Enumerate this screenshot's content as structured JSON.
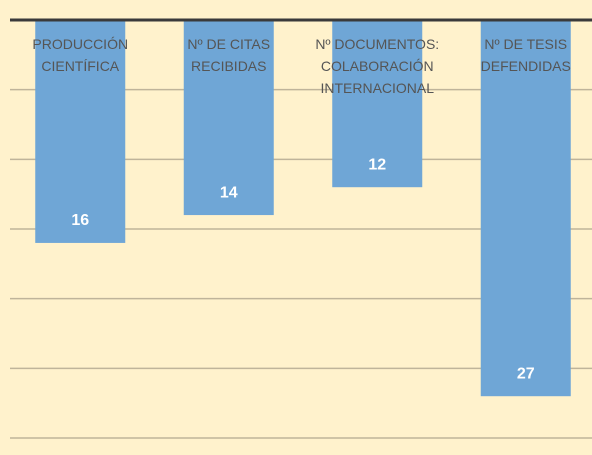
{
  "chart_data": {
    "type": "bar",
    "y_inverted": true,
    "categories": [
      "PRODUCCIÓN\nCIENTÍFICA",
      "Nº DE CITAS\nRECIBIDAS",
      "Nº DOCUMENTOS:\nCOLABORACIÓN\nINTERNACIONAL",
      "Nº DE TESIS\nDEFENDIDAS"
    ],
    "values": [
      16,
      14,
      12,
      27
    ],
    "color": "#6fa6d6",
    "ylim": [
      0,
      30
    ],
    "yticks": [
      0,
      5,
      10,
      15,
      20,
      25,
      30
    ],
    "grid": true
  }
}
